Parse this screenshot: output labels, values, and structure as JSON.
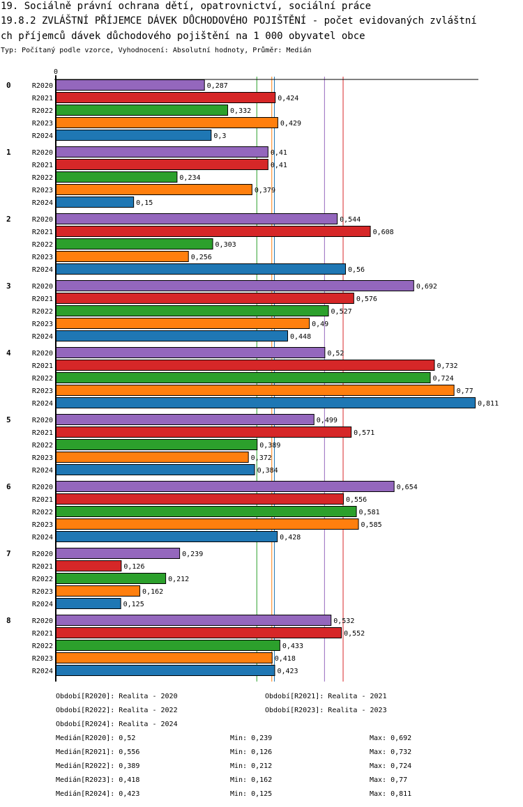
{
  "header": {
    "title_line1": "19. Sociálně právní ochrana dětí, opatrovnictví, sociální práce",
    "title_line2": "19.8.2 ZVLÁŠTNÍ PŘÍJEMCE DÁVEK DŮCHODOVÉHO POJIŠTĚNÍ - počet evidovaných zvláštní",
    "title_line3": "ch příjemců dávek důchodového pojištění na 1 000 obyvatel obce",
    "subtitle": "Typ: Počítaný podle vzorce, Vyhodnocení: Absolutní hodnoty, Průměr: Medián"
  },
  "chart_data": {
    "type": "bar",
    "orientation": "horizontal",
    "title": "19.8.2 ZVLÁŠTNÍ PŘÍJEMCE DÁVEK DŮCHODOVÉHO POJIŠTĚNÍ - počet evidovaných zvláštních příjemců dávek důchodového pojištění na 1 000 obyvatel obce",
    "xlabel": "",
    "ylabel": "",
    "axis_zero_label": "0",
    "xlim": [
      0,
      0.811
    ],
    "grid": false,
    "decimal_separator": ",",
    "categories": [
      "0",
      "1",
      "2",
      "3",
      "4",
      "5",
      "6",
      "7",
      "8"
    ],
    "series": [
      {
        "name": "R2020",
        "color": "#9467bd",
        "values": [
          0.287,
          0.41,
          0.544,
          0.692,
          0.52,
          0.499,
          0.654,
          0.239,
          0.532
        ]
      },
      {
        "name": "R2021",
        "color": "#d62728",
        "values": [
          0.424,
          0.41,
          0.608,
          0.576,
          0.732,
          0.571,
          0.556,
          0.126,
          0.552
        ]
      },
      {
        "name": "R2022",
        "color": "#2ca02c",
        "values": [
          0.332,
          0.234,
          0.303,
          0.527,
          0.724,
          0.389,
          0.581,
          0.212,
          0.433
        ]
      },
      {
        "name": "R2023",
        "color": "#ff7f0e",
        "values": [
          0.429,
          0.379,
          0.256,
          0.49,
          0.77,
          0.372,
          0.585,
          0.162,
          0.418
        ]
      },
      {
        "name": "R2024",
        "color": "#1f77b4",
        "values": [
          0.3,
          0.15,
          0.56,
          0.448,
          0.811,
          0.384,
          0.428,
          0.125,
          0.423
        ]
      }
    ],
    "median_lines": [
      {
        "series": "R2020",
        "value": 0.52,
        "color": "#9467bd"
      },
      {
        "series": "R2021",
        "value": 0.556,
        "color": "#d62728"
      },
      {
        "series": "R2022",
        "value": 0.389,
        "color": "#2ca02c"
      },
      {
        "series": "R2023",
        "value": 0.418,
        "color": "#ff7f0e"
      },
      {
        "series": "R2024",
        "value": 0.423,
        "color": "#1f77b4"
      }
    ]
  },
  "legend": {
    "periods": [
      "Období[R2020]: Realita - 2020",
      "Období[R2021]: Realita - 2021",
      "Období[R2022]: Realita - 2022",
      "Období[R2023]: Realita - 2023",
      "Období[R2024]: Realita - 2024"
    ],
    "stats": [
      {
        "median": "Medián[R2020]: 0,52",
        "min": "Min: 0,239",
        "max": "Max: 0,692"
      },
      {
        "median": "Medián[R2021]: 0,556",
        "min": "Min: 0,126",
        "max": "Max: 0,732"
      },
      {
        "median": "Medián[R2022]: 0,389",
        "min": "Min: 0,212",
        "max": "Max: 0,724"
      },
      {
        "median": "Medián[R2023]: 0,418",
        "min": "Min: 0,162",
        "max": "Max: 0,77"
      },
      {
        "median": "Medián[R2024]: 0,423",
        "min": "Min: 0,125",
        "max": "Max: 0,811"
      }
    ]
  }
}
